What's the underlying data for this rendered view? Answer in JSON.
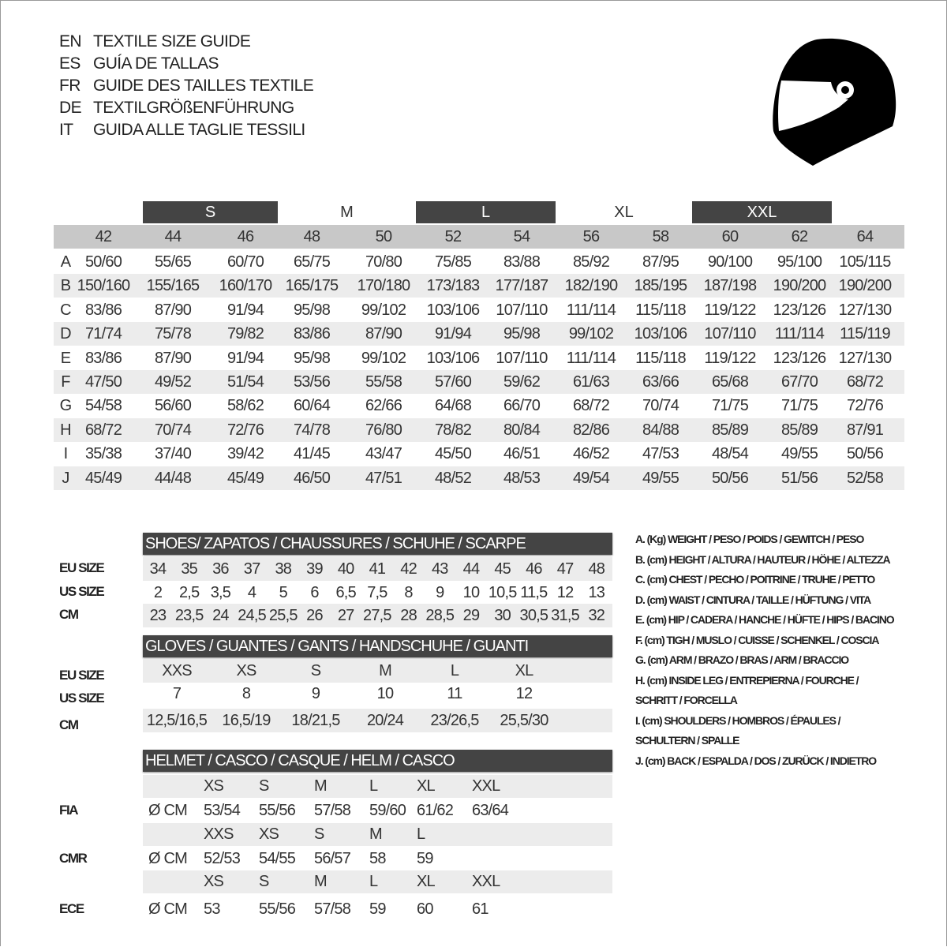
{
  "title_lines": [
    {
      "code": "EN",
      "text": "TEXTILE SIZE GUIDE"
    },
    {
      "code": "ES",
      "text": "GUÍA DE TALLAS"
    },
    {
      "code": "FR",
      "text": "GUIDE DES TAILLES TEXTILE"
    },
    {
      "code": "DE",
      "text": "TEXTILGRÖßENFÜHRUNG"
    },
    {
      "code": "IT",
      "text": "GUIDA ALLE TAGLIE TESSILI"
    }
  ],
  "helmet_icon": "helmet-icon",
  "colors": {
    "header_dark": "#444444",
    "size_row": "#c8c8c8",
    "stripe": "#ececec"
  },
  "textile": {
    "bands": [
      {
        "label": "S",
        "style": "dark"
      },
      {
        "label": "M",
        "style": "light"
      },
      {
        "label": "L",
        "style": "dark"
      },
      {
        "label": "XL",
        "style": "light"
      },
      {
        "label": "XXL",
        "style": "dark"
      }
    ],
    "sizes": [
      "42",
      "44",
      "46",
      "48",
      "50",
      "52",
      "54",
      "56",
      "58",
      "60",
      "62",
      "64"
    ],
    "rows": [
      {
        "letter": "A",
        "values": [
          "50/60",
          "55/65",
          "60/70",
          "65/75",
          "70/80",
          "75/85",
          "83/88",
          "85/92",
          "87/95",
          "90/100",
          "95/100",
          "105/115"
        ]
      },
      {
        "letter": "B",
        "values": [
          "150/160",
          "155/165",
          "160/170",
          "165/175",
          "170/180",
          "173/183",
          "177/187",
          "182/190",
          "185/195",
          "187/198",
          "190/200",
          "190/200"
        ]
      },
      {
        "letter": "C",
        "values": [
          "83/86",
          "87/90",
          "91/94",
          "95/98",
          "99/102",
          "103/106",
          "107/110",
          "111/114",
          "115/118",
          "119/122",
          "123/126",
          "127/130"
        ]
      },
      {
        "letter": "D",
        "values": [
          "71/74",
          "75/78",
          "79/82",
          "83/86",
          "87/90",
          "91/94",
          "95/98",
          "99/102",
          "103/106",
          "107/110",
          "111/114",
          "115/119"
        ]
      },
      {
        "letter": "E",
        "values": [
          "83/86",
          "87/90",
          "91/94",
          "95/98",
          "99/102",
          "103/106",
          "107/110",
          "111/114",
          "115/118",
          "119/122",
          "123/126",
          "127/130"
        ]
      },
      {
        "letter": "F",
        "values": [
          "47/50",
          "49/52",
          "51/54",
          "53/56",
          "55/58",
          "57/60",
          "59/62",
          "61/63",
          "63/66",
          "65/68",
          "67/70",
          "68/72"
        ]
      },
      {
        "letter": "G",
        "values": [
          "54/58",
          "56/60",
          "58/62",
          "60/64",
          "62/66",
          "64/68",
          "66/70",
          "68/72",
          "70/74",
          "71/75",
          "71/75",
          "72/76"
        ]
      },
      {
        "letter": "H",
        "values": [
          "68/72",
          "70/74",
          "72/76",
          "74/78",
          "76/80",
          "78/82",
          "80/84",
          "82/86",
          "84/88",
          "85/89",
          "85/89",
          "87/91"
        ]
      },
      {
        "letter": "I",
        "values": [
          "35/38",
          "37/40",
          "39/42",
          "41/45",
          "43/47",
          "45/50",
          "46/51",
          "46/52",
          "47/53",
          "48/54",
          "49/55",
          "50/56"
        ]
      },
      {
        "letter": "J",
        "values": [
          "45/49",
          "44/48",
          "45/49",
          "46/50",
          "47/51",
          "48/52",
          "48/53",
          "49/54",
          "49/55",
          "50/56",
          "51/56",
          "52/58"
        ]
      }
    ]
  },
  "shoes": {
    "title": "SHOES/ ZAPATOS / CHAUSSURES / SCHUHE / SCARPE",
    "rows": [
      {
        "label": "EU SIZE",
        "values": [
          "34",
          "35",
          "36",
          "37",
          "38",
          "39",
          "40",
          "41",
          "42",
          "43",
          "44",
          "45",
          "46",
          "47",
          "48"
        ]
      },
      {
        "label": "US SIZE",
        "values": [
          "2",
          "2,5",
          "3,5",
          "4",
          "5",
          "6",
          "6,5",
          "7,5",
          "8",
          "9",
          "10",
          "10,5",
          "11,5",
          "12",
          "13"
        ]
      },
      {
        "label": "CM",
        "values": [
          "23",
          "23,5",
          "24",
          "24,5",
          "25,5",
          "26",
          "27",
          "27,5",
          "28",
          "28,5",
          "29",
          "30",
          "30,5",
          "31,5",
          "32"
        ]
      }
    ]
  },
  "gloves": {
    "title": "GLOVES / GUANTES / GANTS / HANDSCHUHE / GUANTI",
    "rows": [
      {
        "label": "EU SIZE",
        "values": [
          "XXS",
          "XS",
          "S",
          "M",
          "L",
          "XL"
        ]
      },
      {
        "label": "US SIZE",
        "values": [
          "7",
          "8",
          "9",
          "10",
          "11",
          "12"
        ]
      },
      {
        "label": "CM",
        "values": [
          "12,5/16,5",
          "16,5/19",
          "18/21,5",
          "20/24",
          "23/26,5",
          "25,5/30"
        ]
      }
    ]
  },
  "helmet": {
    "title": "HELMET / CASCO / CASQUE / HELM / CASCO",
    "unit": "Ø CM",
    "standards": [
      {
        "label": "FIA",
        "sizes": [
          "XS",
          "S",
          "M",
          "L",
          "XL",
          "XXL"
        ],
        "values": [
          "53/54",
          "55/56",
          "57/58",
          "59/60",
          "61/62",
          "63/64"
        ]
      },
      {
        "label": "CMR",
        "sizes": [
          "XXS",
          "XS",
          "S",
          "M",
          "L"
        ],
        "values": [
          "52/53",
          "54/55",
          "56/57",
          "58",
          "59"
        ]
      },
      {
        "label": "ECE",
        "sizes": [
          "XS",
          "S",
          "M",
          "L",
          "XL",
          "XXL"
        ],
        "values": [
          "53",
          "55/56",
          "57/58",
          "59",
          "60",
          "61"
        ]
      }
    ]
  },
  "legend": [
    "A. (Kg) WEIGHT / PESO / POIDS / GEWITCH / PESO",
    "B. (cm) HEIGHT / ALTURA / HAUTEUR / HÖHE / ALTEZZA",
    "C. (cm) CHEST / PECHO / POITRINE / TRUHE / PETTO",
    "D. (cm) WAIST / CINTURA / TAILLE / HÜFTUNG / VITA",
    "E. (cm) HIP / CADERA / HANCHE / HÜFTE / HIPS /  BACINO",
    "F.  (cm) TIGH / MUSLO / CUISSE / SCHENKEL / COSCIA",
    "G. (cm) ARM  / BRAZO / BRAS / ARM / BRACCIO",
    "H. (cm) INSIDE LEG / ENTREPIERNA / FOURCHE /",
    "SCHRITT / FORCELLA",
    "I.  (cm) SHOULDERS / HOMBROS / ÉPAULES /",
    "SCHULTERN / SPALLE",
    "J. (cm) BACK / ESPALDA / DOS / ZURÜCK / INDIETRO"
  ]
}
